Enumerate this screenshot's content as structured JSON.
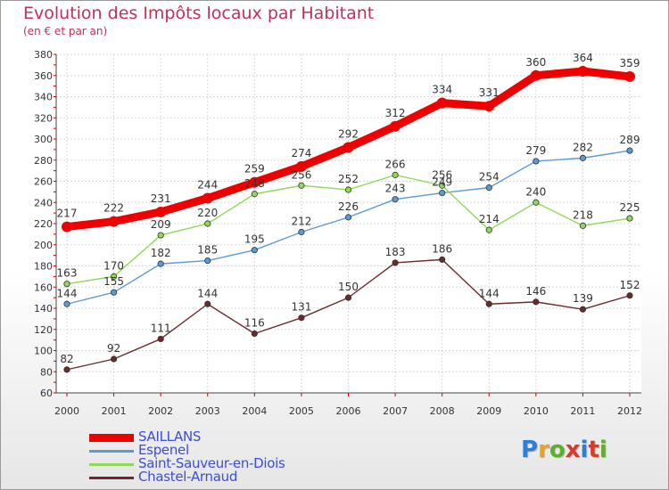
{
  "header": {
    "title": "Evolution des Impôts locaux par Habitant",
    "subtitle": "(en € et par an)"
  },
  "logo": {
    "text": "Proxiti",
    "colors": [
      "#2b7fd8",
      "#e8a320",
      "#5bb02c",
      "#d83b2b",
      "#2b7fd8",
      "#d83b2b",
      "#5bb02c"
    ]
  },
  "chart_data": {
    "type": "line",
    "x": [
      "2000",
      "2001",
      "2002",
      "2003",
      "2004",
      "2005",
      "2006",
      "2007",
      "2008",
      "2009",
      "2010",
      "2011",
      "2012"
    ],
    "ylim": [
      60,
      380
    ],
    "yticks": [
      60,
      80,
      100,
      120,
      140,
      160,
      180,
      200,
      220,
      240,
      260,
      280,
      300,
      320,
      340,
      360,
      380
    ],
    "grid": true,
    "legend_position": "bottom-left",
    "series": [
      {
        "name": "SAILLANS",
        "color": "#ee0000",
        "thick": true,
        "values": [
          217,
          222,
          231,
          244,
          259,
          274,
          292,
          312,
          334,
          331,
          360,
          364,
          359
        ]
      },
      {
        "name": "Espenel",
        "color": "#5b9bd5",
        "thick": false,
        "values": [
          144,
          155,
          182,
          185,
          195,
          212,
          226,
          243,
          249,
          254,
          279,
          282,
          289
        ]
      },
      {
        "name": "Saint-Sauveur-en-Diois",
        "color": "#8fd85a",
        "thick": false,
        "values": [
          163,
          170,
          209,
          220,
          248,
          256,
          252,
          266,
          256,
          214,
          240,
          218,
          225
        ]
      },
      {
        "name": "Chastel-Arnaud",
        "color": "#6b2a2a",
        "thick": false,
        "values": [
          82,
          92,
          111,
          144,
          116,
          131,
          150,
          183,
          186,
          144,
          146,
          139,
          152
        ]
      }
    ]
  }
}
